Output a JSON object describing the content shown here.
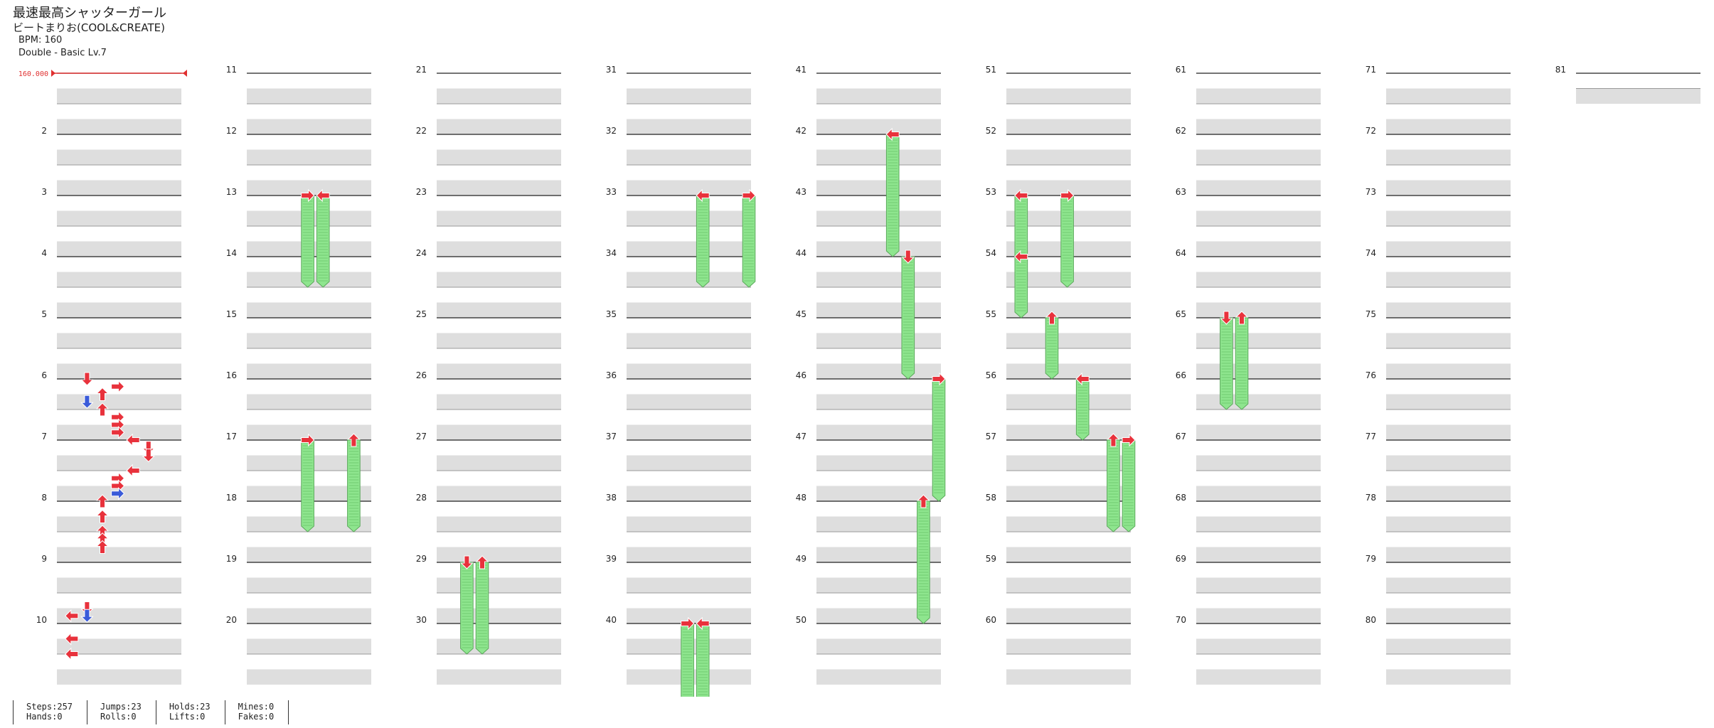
{
  "header": {
    "title": "最速最高シャッターガール",
    "artist": "ビートまりお(COOL&CREATE)",
    "bpm": "BPM: 160",
    "difficulty": "Double - Basic  Lv.7"
  },
  "chart_data": {
    "type": "step_chart",
    "mode": "Double",
    "difficulty": "Basic",
    "level": 7,
    "bpm_marker": "160.000",
    "measures_per_column": 10,
    "measure_count": 81,
    "arrow_colors": {
      "quarter": "#e8323c",
      "eighth": "#3a5bd9",
      "hold": "#8ee58e"
    },
    "panels": [
      "left",
      "down",
      "up",
      "right",
      "left",
      "down",
      "up",
      "right"
    ],
    "notes": [
      {
        "m": 6,
        "b": 0,
        "lane": 1,
        "c": "r"
      },
      {
        "m": 6,
        "b": 0.5,
        "lane": 3,
        "c": "r"
      },
      {
        "m": 6,
        "b": 1,
        "lane": 2,
        "c": "r"
      },
      {
        "m": 6,
        "b": 1.5,
        "lane": 1,
        "c": "b"
      },
      {
        "m": 6,
        "b": 2,
        "lane": 2,
        "c": "r"
      },
      {
        "m": 6,
        "b": 2.5,
        "lane": 3,
        "c": "r"
      },
      {
        "m": 6,
        "b": 3,
        "lane": 3,
        "c": "r"
      },
      {
        "m": 6,
        "b": 3.5,
        "lane": 3,
        "c": "r"
      },
      {
        "m": 7,
        "b": 0,
        "lane": 4,
        "c": "r"
      },
      {
        "m": 7,
        "b": 0.5,
        "lane": 5,
        "c": "r"
      },
      {
        "m": 7,
        "b": 1,
        "lane": 5,
        "c": "r"
      },
      {
        "m": 7,
        "b": 2,
        "lane": 4,
        "c": "r"
      },
      {
        "m": 7,
        "b": 2.5,
        "lane": 3,
        "c": "r"
      },
      {
        "m": 7,
        "b": 3,
        "lane": 3,
        "c": "r"
      },
      {
        "m": 7,
        "b": 3.5,
        "lane": 3,
        "c": "b"
      },
      {
        "m": 8,
        "b": 0,
        "lane": 2,
        "c": "r"
      },
      {
        "m": 8,
        "b": 1,
        "lane": 2,
        "c": "r"
      },
      {
        "m": 8,
        "b": 2,
        "lane": 2,
        "c": "r"
      },
      {
        "m": 8,
        "b": 2.5,
        "lane": 2,
        "c": "r"
      },
      {
        "m": 8,
        "b": 3,
        "lane": 2,
        "c": "r"
      },
      {
        "m": 9,
        "b": 3,
        "lane": 1,
        "c": "r"
      },
      {
        "m": 9,
        "b": 3.5,
        "lane": 1,
        "c": "b"
      },
      {
        "m": 9,
        "b": 3.5,
        "lane": 0,
        "c": "r"
      },
      {
        "m": 10,
        "b": 1,
        "lane": 0,
        "c": "r"
      },
      {
        "m": 10,
        "b": 2,
        "lane": 0,
        "c": "r"
      }
    ],
    "holds": [
      {
        "m": 13,
        "b": 0,
        "lane": 3,
        "len": 1.5
      },
      {
        "m": 13,
        "b": 0,
        "lane": 4,
        "len": 1.5
      },
      {
        "m": 17,
        "b": 0,
        "lane": 3,
        "len": 1.5
      },
      {
        "m": 17,
        "b": 0,
        "lane": 6,
        "len": 1.5
      },
      {
        "m": 29,
        "b": 0,
        "lane": 1,
        "len": 1.5
      },
      {
        "m": 29,
        "b": 0,
        "lane": 2,
        "len": 1.5
      },
      {
        "m": 33,
        "b": 0,
        "lane": 4,
        "len": 1.5
      },
      {
        "m": 33,
        "b": 0,
        "lane": 7,
        "len": 1.5
      },
      {
        "m": 40,
        "b": 0,
        "lane": 3,
        "len": 2
      },
      {
        "m": 40,
        "b": 0,
        "lane": 4,
        "len": 2
      },
      {
        "m": 42,
        "b": 0,
        "lane": 4,
        "len": 2
      },
      {
        "m": 44,
        "b": 0,
        "lane": 5,
        "len": 2
      },
      {
        "m": 46,
        "b": 0,
        "lane": 7,
        "len": 2
      },
      {
        "m": 48,
        "b": 0,
        "lane": 6,
        "len": 2
      },
      {
        "m": 53,
        "b": 0,
        "lane": 0,
        "len": 1.5
      },
      {
        "m": 53,
        "b": 0,
        "lane": 3,
        "len": 1.5
      },
      {
        "m": 54,
        "b": 0,
        "lane": 0,
        "len": 1
      },
      {
        "m": 55,
        "b": 0,
        "lane": 2,
        "len": 1
      },
      {
        "m": 56,
        "b": 0,
        "lane": 4,
        "len": 1
      },
      {
        "m": 57,
        "b": 0,
        "lane": 6,
        "len": 1.5
      },
      {
        "m": 57,
        "b": 0,
        "lane": 7,
        "len": 1.5
      },
      {
        "m": 65,
        "b": 0,
        "lane": 1,
        "len": 1.5
      },
      {
        "m": 65,
        "b": 0,
        "lane": 2,
        "len": 1.5
      }
    ]
  },
  "stats": {
    "steps": "Steps:257",
    "hands": "Hands:0",
    "jumps": "Jumps:23",
    "rolls": "Rolls:0",
    "holds": "Holds:23",
    "lifts": "Lifts:0",
    "mines": "Mines:0",
    "fakes": "Fakes:0"
  }
}
